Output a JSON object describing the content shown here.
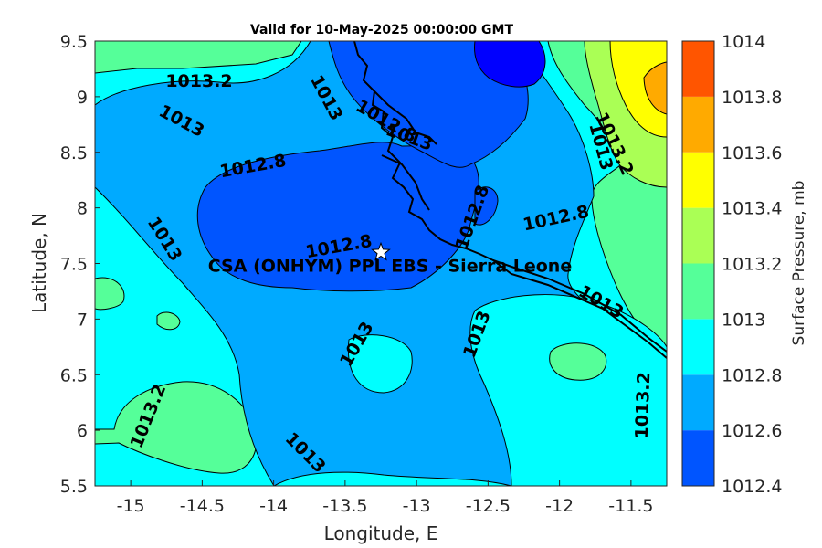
{
  "title": "Valid for 10-May-2025 00:00:00 GMT",
  "xlabel": "Longitude, E",
  "ylabel": "Latitude, N",
  "x_ticks": [
    "-15",
    "-14.5",
    "-14",
    "-13.5",
    "-13",
    "-12.5",
    "-12",
    "-11.5"
  ],
  "y_ticks": [
    "9.5",
    "9",
    "8.5",
    "8",
    "7.5",
    "7",
    "6.5",
    "6",
    "5.5"
  ],
  "colorbar": {
    "label": "Surface Pressure, mb",
    "ticks": [
      "1014",
      "1013.8",
      "1013.6",
      "1013.4",
      "1013.2",
      "1013",
      "1012.8",
      "1012.6",
      "1012.4"
    ],
    "colors": [
      "#ff5500",
      "#ffaa00",
      "#ffff00",
      "#aaff55",
      "#55ff99",
      "#00ffff",
      "#00aaff",
      "#0055ff",
      "#0000ff"
    ]
  },
  "site": {
    "label": "CSA (ONHYM) PPL EBS  - Sierra Leone",
    "lon": -13.25,
    "lat": 7.6
  },
  "contour_labels": [
    "1013.2",
    "1013",
    "1013",
    "1012.8",
    "1013",
    "1012.8",
    "1012.8",
    "1012.8",
    "1012.8",
    "1013.2",
    "1013",
    "1013",
    "1013.2",
    "1013",
    "1013",
    "1013",
    "1013.2",
    "1013"
  ],
  "chart_data": {
    "type": "heatmap",
    "title": "Valid for 10-May-2025 00:00:00 GMT",
    "xlabel": "Longitude, E",
    "ylabel": "Latitude, N",
    "xlim": [
      -15.25,
      -11.25
    ],
    "ylim": [
      5.5,
      9.5
    ],
    "colorbar_label": "Surface Pressure, mb",
    "levels": [
      1012.4,
      1012.6,
      1012.8,
      1013,
      1013.2,
      1013.4,
      1013.6,
      1013.8,
      1014
    ]
  }
}
